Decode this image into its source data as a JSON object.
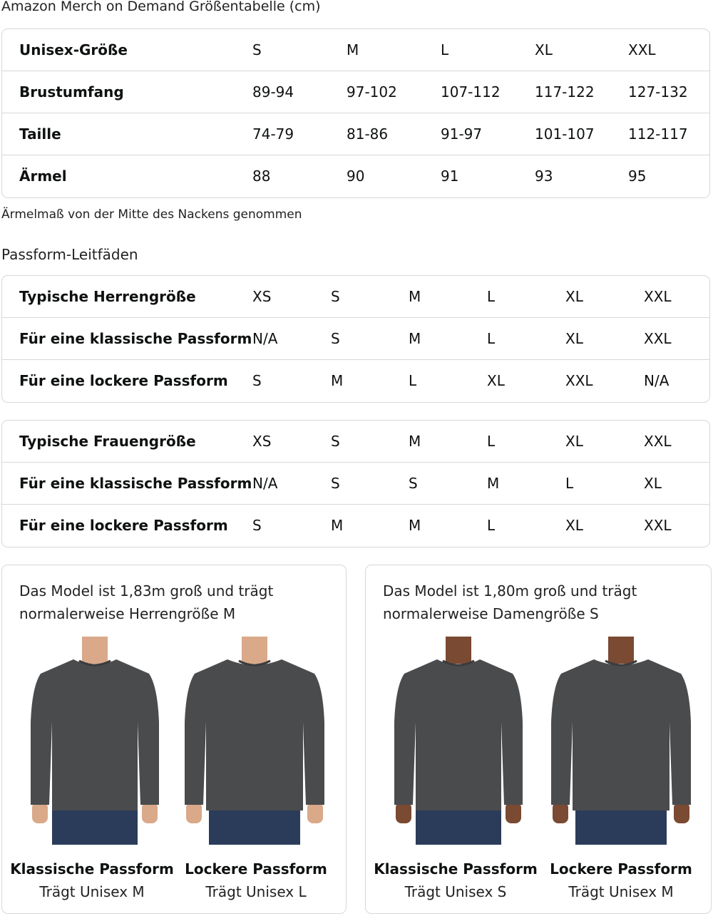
{
  "title": "Amazon Merch on Demand Größentabelle (cm)",
  "size_table": {
    "rows": [
      {
        "label": "Unisex-Größe",
        "values": [
          "S",
          "M",
          "L",
          "XL",
          "XXL"
        ]
      },
      {
        "label": "Brustumfang",
        "values": [
          "89-94",
          "97-102",
          "107-112",
          "117-122",
          "127-132"
        ]
      },
      {
        "label": "Taille",
        "values": [
          "74-79",
          "81-86",
          "91-97",
          "101-107",
          "112-117"
        ]
      },
      {
        "label": "Ärmel",
        "values": [
          "88",
          "90",
          "91",
          "93",
          "95"
        ]
      }
    ]
  },
  "note": "Ärmelmaß von der Mitte des Nackens genommen",
  "fit_heading": "Passform-Leitfäden",
  "men_table": {
    "rows": [
      {
        "label": "Typische Herrengröße",
        "values": [
          "XS",
          "S",
          "M",
          "L",
          "XL",
          "XXL"
        ]
      },
      {
        "label": "Für eine klassische Passform",
        "values": [
          "N/A",
          "S",
          "M",
          "L",
          "XL",
          "XXL"
        ]
      },
      {
        "label": "Für eine lockere Passform",
        "values": [
          "S",
          "M",
          "L",
          "XL",
          "XXL",
          "N/A"
        ]
      }
    ]
  },
  "women_table": {
    "rows": [
      {
        "label": "Typische Frauengröße",
        "values": [
          "XS",
          "S",
          "M",
          "L",
          "XL",
          "XXL"
        ]
      },
      {
        "label": "Für eine klassische Passform",
        "values": [
          "N/A",
          "S",
          "S",
          "M",
          "L",
          "XL"
        ]
      },
      {
        "label": "Für eine lockere Passform",
        "values": [
          "S",
          "M",
          "M",
          "L",
          "XL",
          "XXL"
        ]
      }
    ]
  },
  "cards": [
    {
      "text_line1": "Das Model ist 1,83m groß und trägt",
      "text_line2": "normalerweise Herrengröße M",
      "photos": [
        {
          "title": "Klassische Passform",
          "subtitle": "Trägt Unisex M"
        },
        {
          "title": "Lockere Passform",
          "subtitle": "Trägt Unisex L"
        }
      ]
    },
    {
      "text_line1": "Das Model ist 1,80m groß und trägt",
      "text_line2": "normalerweise Damengröße S",
      "photos": [
        {
          "title": "Klassische Passform",
          "subtitle": "Trägt Unisex S"
        },
        {
          "title": "Lockere Passform",
          "subtitle": "Trägt Unisex M"
        }
      ]
    }
  ],
  "colors": {
    "shirt": "#4a4b4d",
    "jeans": "#2b3c5a",
    "skin_men": "#d9a98a",
    "skin_women": "#7a4a32",
    "border": "#d5d9d9"
  }
}
